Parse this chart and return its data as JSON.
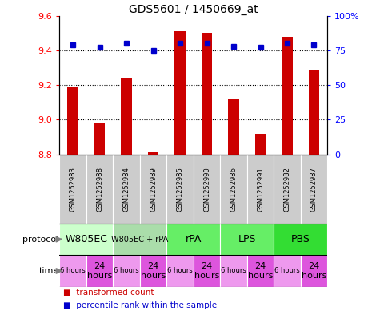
{
  "title": "GDS5601 / 1450669_at",
  "samples": [
    "GSM1252983",
    "GSM1252988",
    "GSM1252984",
    "GSM1252989",
    "GSM1252985",
    "GSM1252990",
    "GSM1252986",
    "GSM1252991",
    "GSM1252982",
    "GSM1252987"
  ],
  "transformed_count": [
    9.19,
    8.98,
    9.24,
    8.81,
    9.51,
    9.5,
    9.12,
    8.92,
    9.48,
    9.29
  ],
  "percentile_rank": [
    79,
    77,
    80,
    75,
    80,
    80,
    78,
    77,
    80,
    79
  ],
  "ylim_left": [
    8.8,
    9.6
  ],
  "ylim_right": [
    0,
    100
  ],
  "yticks_left": [
    8.8,
    9.0,
    9.2,
    9.4,
    9.6
  ],
  "yticks_right": [
    0,
    25,
    50,
    75,
    100
  ],
  "ytick_labels_right": [
    "0",
    "25",
    "50",
    "75",
    "100%"
  ],
  "bar_color": "#cc0000",
  "dot_color": "#0000cc",
  "base_value": 8.8,
  "protocol_defs": [
    {
      "label": "W805EC",
      "start": 0,
      "end": 2,
      "color": "#ccffcc"
    },
    {
      "label": "W805EC + rPA",
      "start": 2,
      "end": 4,
      "color": "#aaddaa"
    },
    {
      "label": "rPA",
      "start": 4,
      "end": 6,
      "color": "#66ee66"
    },
    {
      "label": "LPS",
      "start": 6,
      "end": 8,
      "color": "#66ee66"
    },
    {
      "label": "PBS",
      "start": 8,
      "end": 10,
      "color": "#33dd33"
    }
  ],
  "time_labels": [
    "6 hours",
    "24\nhours",
    "6 hours",
    "24\nhours",
    "6 hours",
    "24\nhours",
    "6 hours",
    "24\nhours",
    "6 hours",
    "24\nhours"
  ],
  "time_colors": [
    "#ee99ee",
    "#dd55dd",
    "#ee99ee",
    "#dd55dd",
    "#ee99ee",
    "#dd55dd",
    "#ee99ee",
    "#dd55dd",
    "#ee99ee",
    "#dd55dd"
  ],
  "sample_bg": "#cccccc",
  "legend_bar_color": "#cc0000",
  "legend_dot_color": "#0000cc"
}
